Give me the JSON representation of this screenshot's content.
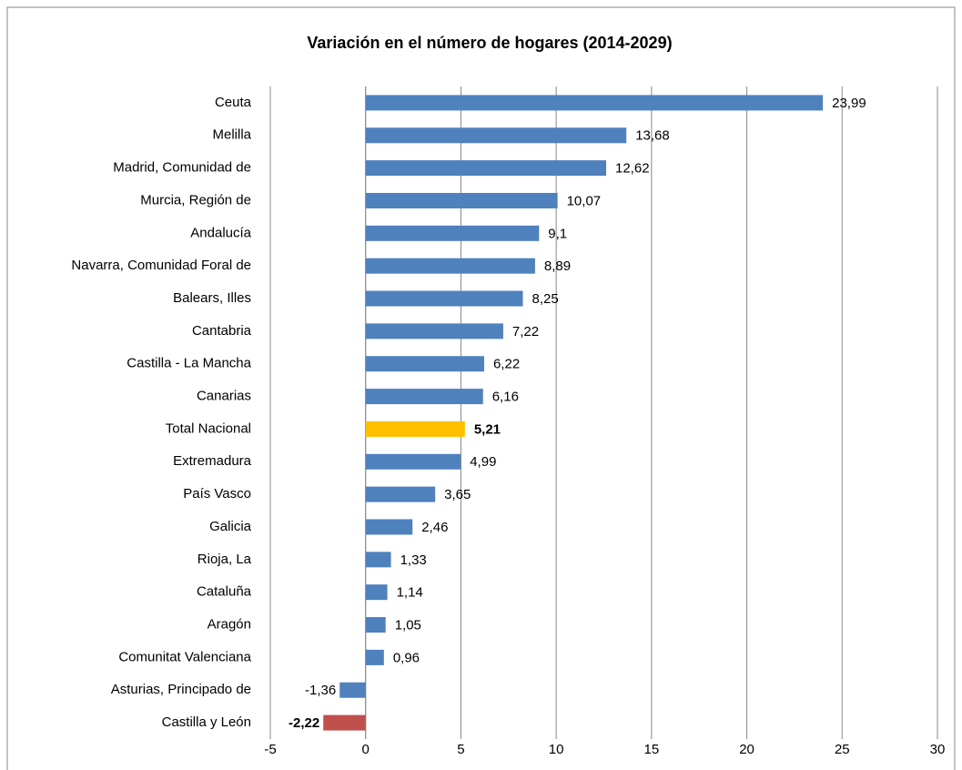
{
  "chart_data": {
    "type": "barh",
    "title": "Variación en el número de hogares (2014-2029)",
    "categories": [
      "Ceuta",
      "Melilla",
      "Madrid, Comunidad de",
      "Murcia, Región de",
      "Andalucía",
      "Navarra, Comunidad Foral de",
      "Balears, Illes",
      "Cantabria",
      "Castilla - La Mancha",
      "Canarias",
      "Total Nacional",
      "Extremadura",
      "País Vasco",
      "Galicia",
      "Rioja, La",
      "Cataluña",
      "Aragón",
      "Comunitat Valenciana",
      "Asturias, Principado de",
      "Castilla y León"
    ],
    "values": [
      23.99,
      13.68,
      12.62,
      10.07,
      9.1,
      8.89,
      8.25,
      7.22,
      6.22,
      6.16,
      5.21,
      4.99,
      3.65,
      2.46,
      1.33,
      1.14,
      1.05,
      0.96,
      -1.36,
      -2.22
    ],
    "value_labels": [
      "23,99",
      "13,68",
      "12,62",
      "10,07",
      "9,1",
      "8,89",
      "8,25",
      "7,22",
      "6,22",
      "6,16",
      "5,21",
      "4,99",
      "3,65",
      "2,46",
      "1,33",
      "1,14",
      "1,05",
      "0,96",
      "-1,36",
      "-2,22"
    ],
    "color": "#4f81bd",
    "colors": [
      "#4f81bd",
      "#4f81bd",
      "#4f81bd",
      "#4f81bd",
      "#4f81bd",
      "#4f81bd",
      "#4f81bd",
      "#4f81bd",
      "#4f81bd",
      "#4f81bd",
      "#ffc000",
      "#4f81bd",
      "#4f81bd",
      "#4f81bd",
      "#4f81bd",
      "#4f81bd",
      "#4f81bd",
      "#4f81bd",
      "#4f81bd",
      "#c0504d"
    ],
    "xlim": [
      -5,
      30
    ],
    "xticks": [
      -5,
      0,
      5,
      10,
      15,
      20,
      25,
      30
    ],
    "grid": true
  }
}
